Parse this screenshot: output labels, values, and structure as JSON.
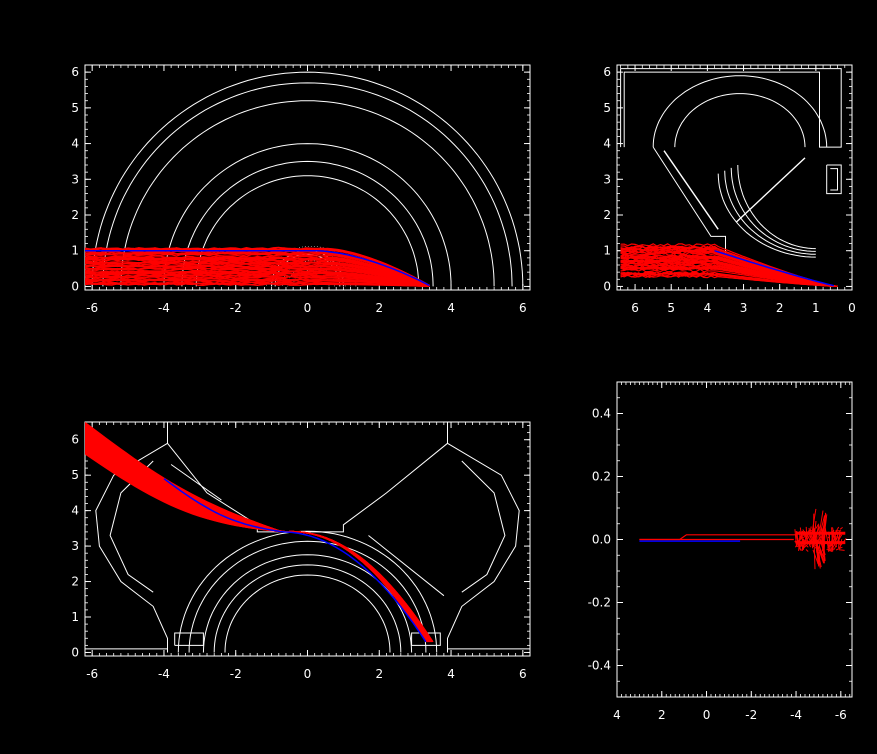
{
  "colors": {
    "background": "#000000",
    "frame": "#ffffff",
    "ray": "#ff0000",
    "ref_ray": "#0000ff"
  },
  "chart_data": [
    {
      "id": "side_view",
      "type": "line",
      "x_ticks": [
        "-6",
        "-4",
        "-2",
        "0",
        "2",
        "4",
        "6"
      ],
      "y_ticks": [
        "0",
        "1",
        "2",
        "3",
        "4",
        "5",
        "6"
      ],
      "xlim": [
        -6.2,
        6.2
      ],
      "ylim": [
        -0.1,
        6.2
      ],
      "annotations": "concentric half-circle outlines (radii approx 1.0, 3.1, 3.5, 4.0, 5.2, 5.7, 6.0) and red ray bundle from x=-6 to x=3.5, y 0-1.1"
    },
    {
      "id": "end_view",
      "type": "line",
      "x_ticks": [
        "6",
        "5",
        "4",
        "3",
        "2",
        "1",
        "0"
      ],
      "y_ticks": [
        "0",
        "1",
        "2",
        "3",
        "4",
        "5",
        "6"
      ],
      "xlim": [
        6.5,
        0
      ],
      "ylim": [
        -0.1,
        6.2
      ],
      "annotations": "vacuum-vessel outline with red ray bundle converging to x=0.4, y=0"
    },
    {
      "id": "poloidal_view",
      "type": "line",
      "x_ticks": [
        "-6",
        "-4",
        "-2",
        "0",
        "2",
        "4",
        "6"
      ],
      "y_ticks": [
        "0",
        "1",
        "2",
        "3",
        "4",
        "5",
        "6"
      ],
      "xlim": [
        -6.2,
        6.2
      ],
      "ylim": [
        -0.1,
        6.5
      ],
      "annotations": "symmetric vessel outline with red ray bundle from (-6,6) to (3.3,0.3)"
    },
    {
      "id": "deviation_view",
      "type": "line",
      "x_ticks": [
        "4",
        "2",
        "0",
        "-2",
        "-4",
        "-6"
      ],
      "y_ticks": [
        "-0.4",
        "-0.2",
        "0.0",
        "0.2",
        "0.4"
      ],
      "xlim": [
        4,
        -6.5
      ],
      "ylim": [
        -0.5,
        0.5
      ],
      "annotations": "red and blue lines near y=0 from x=3 to x=-4, red scatter burst near x=-4 to -6"
    }
  ]
}
